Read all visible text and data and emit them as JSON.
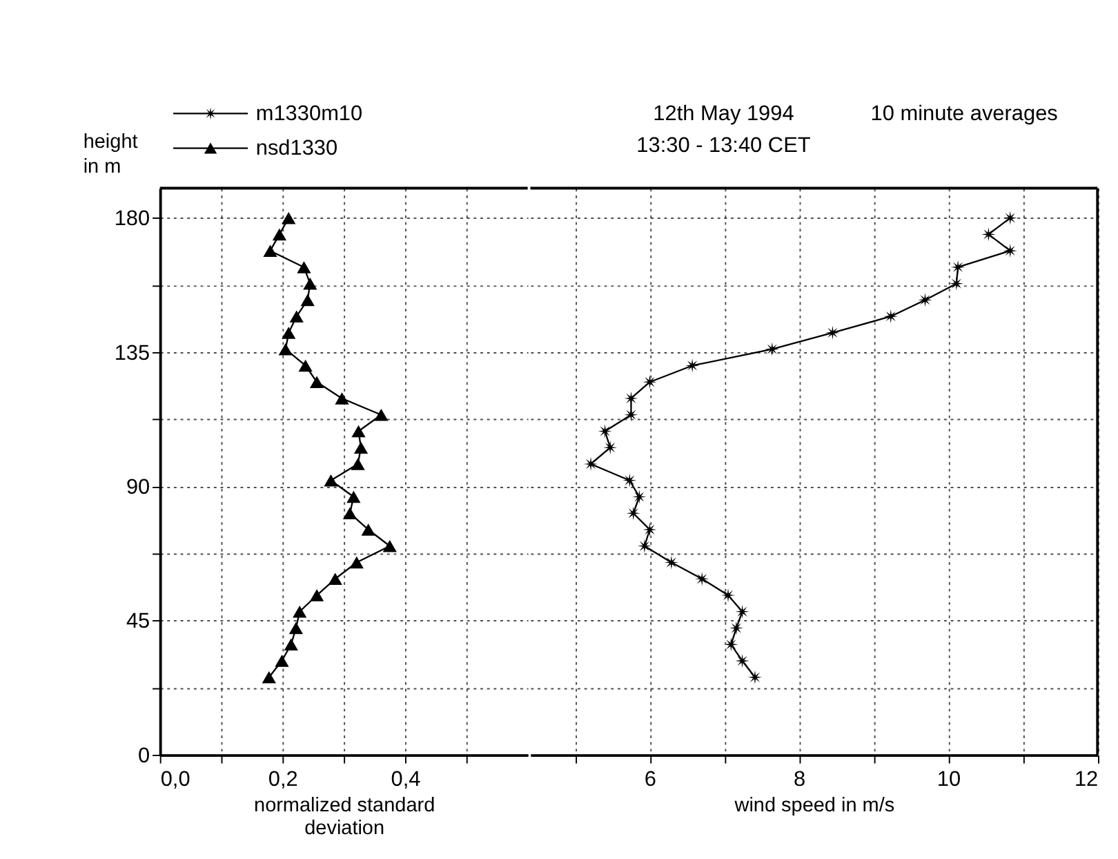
{
  "chart_data": [
    {
      "type": "line",
      "ylabel": "height in m",
      "xlabel": "normalized standard deviation",
      "xlim": [
        0,
        0.6
      ],
      "xticks": [
        {
          "value": 0,
          "label": "0,0"
        },
        {
          "value": 0.1,
          "label": null
        },
        {
          "value": 0.2,
          "label": "0,2"
        },
        {
          "value": 0.3,
          "label": null
        },
        {
          "value": 0.4,
          "label": "0,4"
        },
        {
          "value": 0.5,
          "label": null
        }
      ],
      "ylim": [
        0,
        190
      ],
      "yticks": [
        0,
        {
          "value": 22.5,
          "label": null
        },
        45,
        {
          "value": 67.5,
          "label": null
        },
        90,
        {
          "value": 112.5,
          "label": null
        },
        135,
        {
          "value": 157.5,
          "label": null
        },
        180
      ],
      "grid": true,
      "legend": "top left",
      "line_style": "solid",
      "series": [
        {
          "name": "nsd1330",
          "color": "#000000",
          "marker": "triangle",
          "x": [
            0.178,
            0.199,
            0.214,
            0.222,
            0.228,
            0.256,
            0.286,
            0.321,
            0.375,
            0.34,
            0.31,
            0.316,
            0.279,
            0.323,
            0.328,
            0.324,
            0.361,
            0.297,
            0.256,
            0.2375,
            0.205,
            0.21,
            0.223,
            0.241,
            0.245,
            0.235,
            0.18,
            0.195,
            0.21
          ],
          "values": [
            26,
            31.5,
            37,
            42.5,
            48,
            53.5,
            59,
            64.5,
            70,
            75.5,
            81,
            86.5,
            92,
            97.5,
            103,
            108.5,
            114,
            119.5,
            125,
            130.5,
            136,
            141.5,
            147,
            152.5,
            158,
            163.5,
            169,
            174.5,
            180
          ]
        }
      ]
    },
    {
      "type": "line",
      "title": "12th May 1994",
      "subtitle": "13:30 - 13:40 CET",
      "annotations": [
        "10 minute averages"
      ],
      "xlabel": "wind speed  in m/s",
      "xlim": [
        4.4,
        12
      ],
      "xticks": [
        {
          "value": 5,
          "label": null
        },
        6,
        {
          "value": 7,
          "label": null
        },
        8,
        {
          "value": 9,
          "label": null
        },
        10,
        {
          "value": 11,
          "label": null
        },
        12
      ],
      "ylim": [
        0,
        190
      ],
      "yticks": [
        0,
        {
          "value": 22.5,
          "label": null
        },
        45,
        {
          "value": 67.5,
          "label": null
        },
        90,
        {
          "value": 112.5,
          "label": null
        },
        135,
        {
          "value": 157.5,
          "label": null
        },
        180
      ],
      "tick_labels": "x",
      "grid": true,
      "line_style": "solid",
      "series": [
        {
          "name": "m1330m10",
          "color": "#000000",
          "marker": "star",
          "x": [
            7.41,
            7.24,
            7.09,
            7.16,
            7.24,
            7.05,
            6.7,
            6.29,
            5.93,
            6.0,
            5.78,
            5.86,
            5.73,
            5.21,
            5.47,
            5.4,
            5.75,
            5.75,
            6.0,
            6.57,
            7.64,
            8.45,
            9.23,
            9.69,
            10.11,
            10.13,
            10.83,
            10.54,
            10.83
          ],
          "values": [
            26,
            31.5,
            37,
            42.5,
            48,
            53.5,
            59,
            64.5,
            70,
            75.5,
            81,
            86.5,
            92,
            97.5,
            103,
            108.5,
            114,
            119.5,
            125,
            130.5,
            136,
            141.5,
            147,
            152.5,
            158,
            163.5,
            169,
            174.5,
            180
          ]
        }
      ]
    }
  ]
}
